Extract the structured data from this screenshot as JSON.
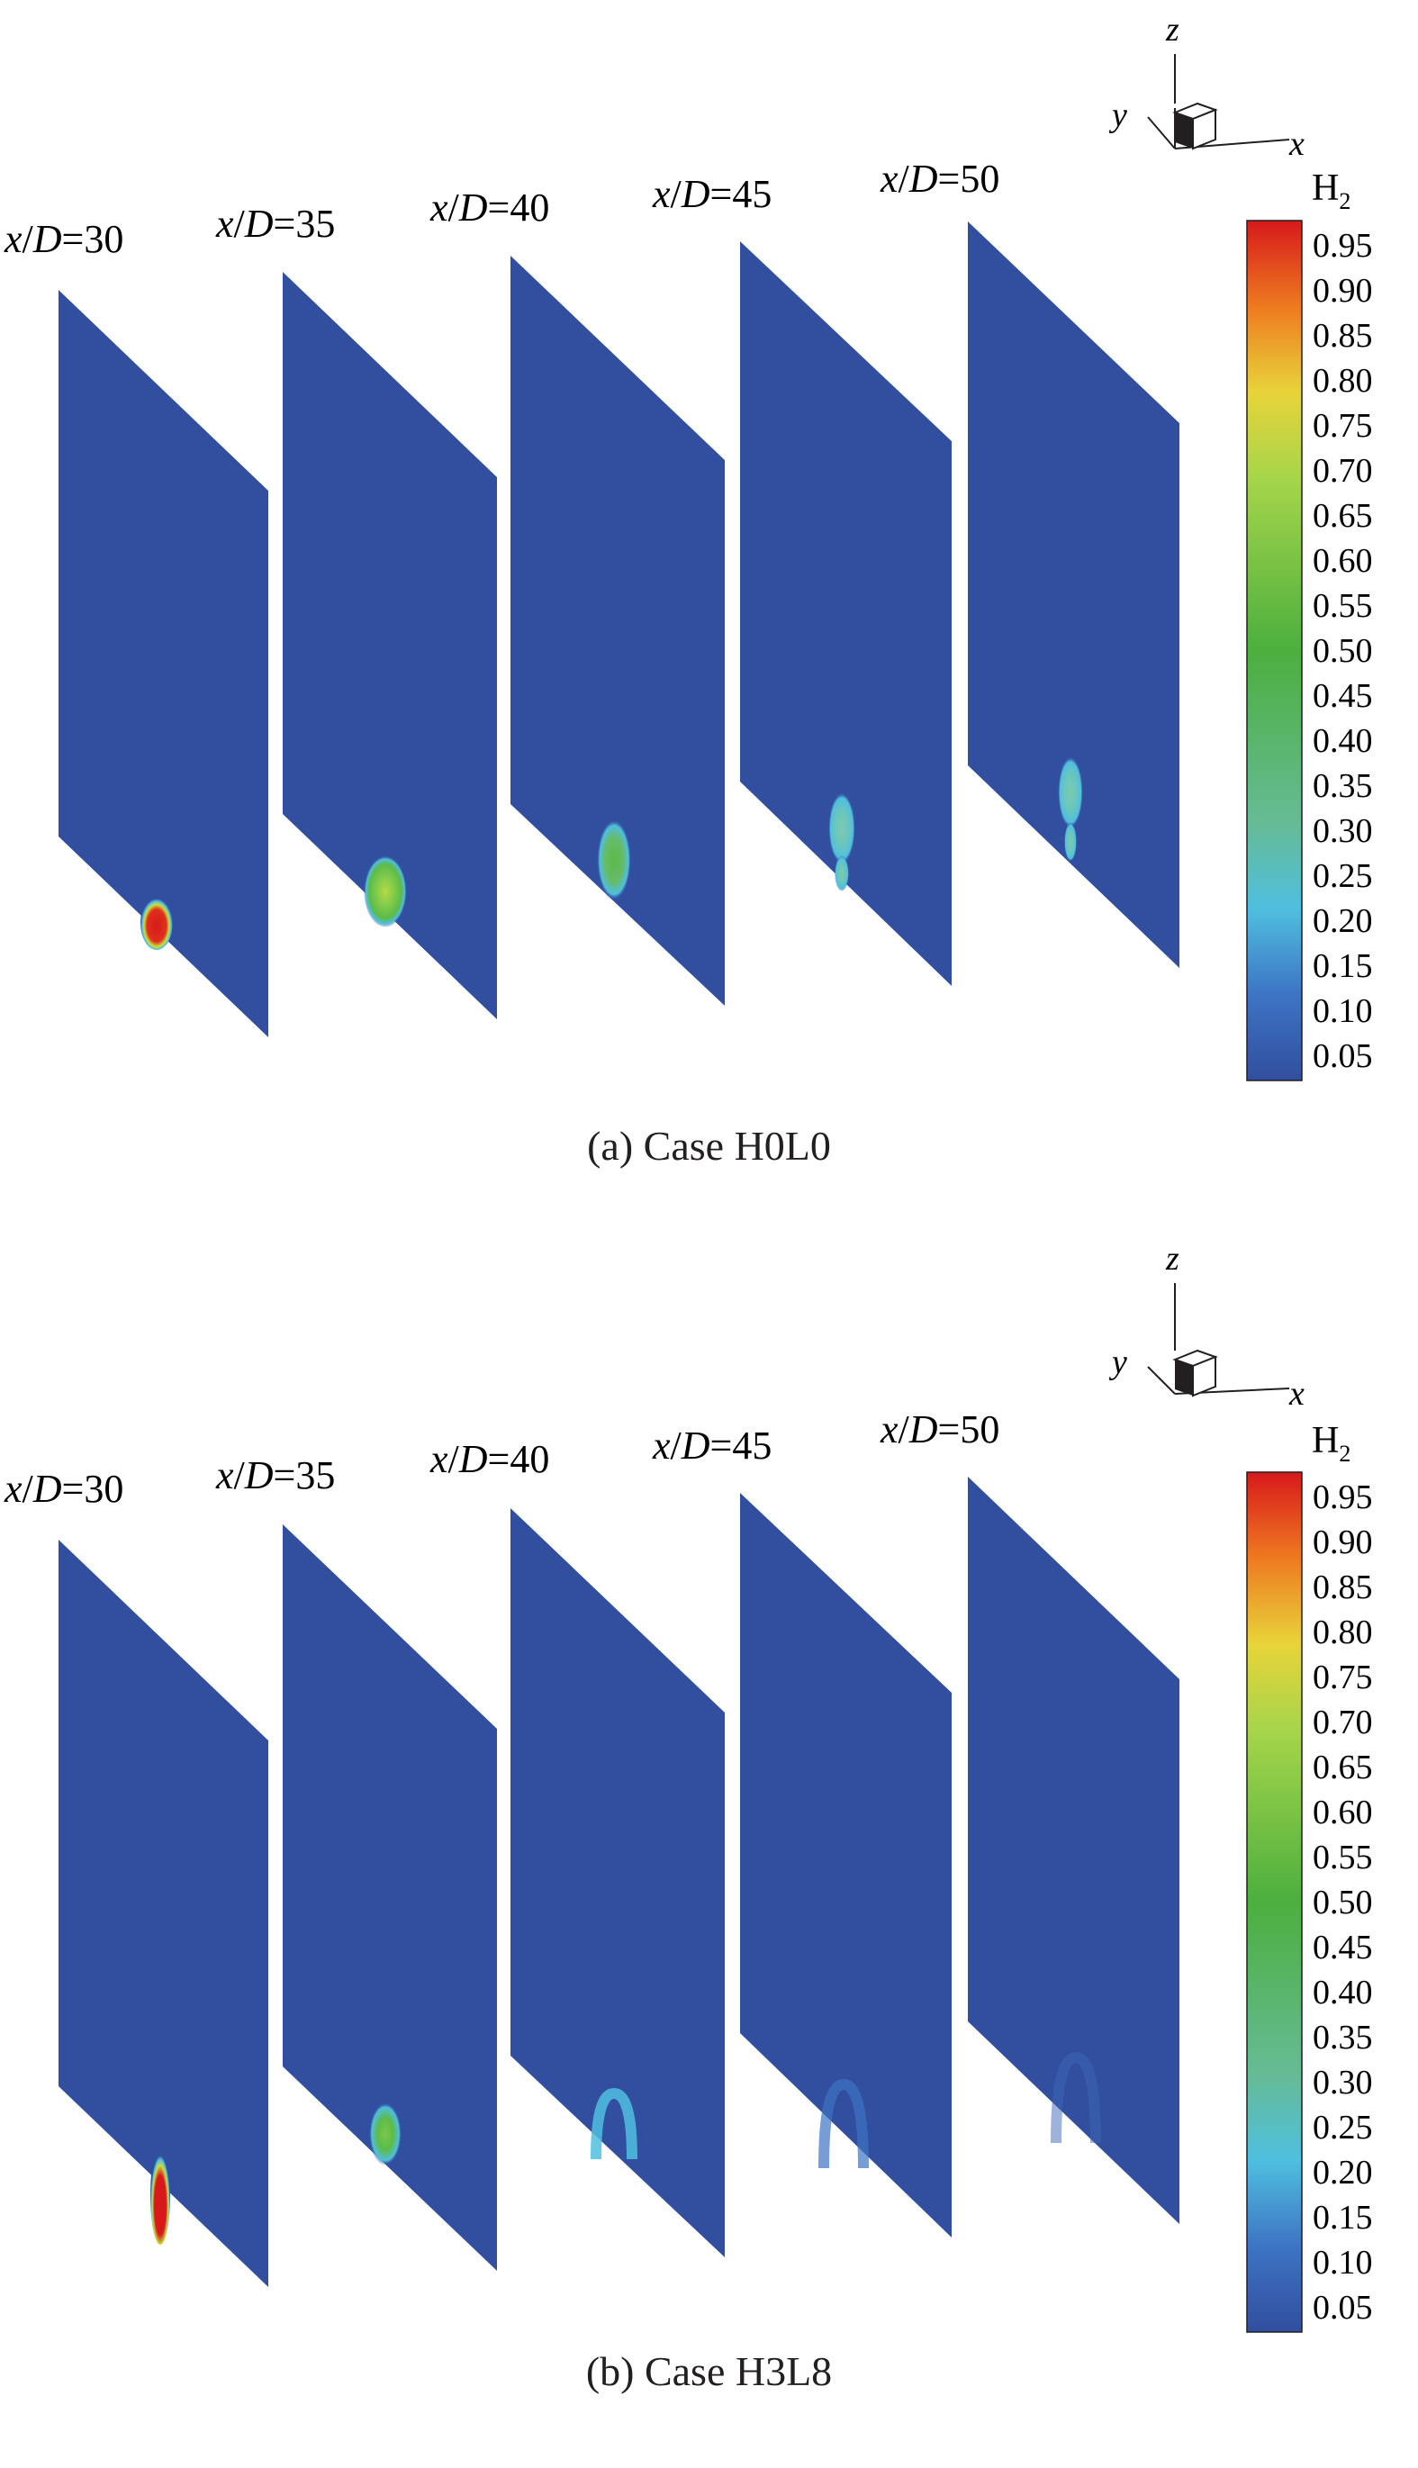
{
  "axis_labels": [
    "z",
    "y",
    "x"
  ],
  "colorbar": {
    "title_main": "H",
    "title_sub": "2",
    "ticks": [
      "0.95",
      "0.90",
      "0.85",
      "0.80",
      "0.75",
      "0.70",
      "0.65",
      "0.60",
      "0.55",
      "0.50",
      "0.45",
      "0.40",
      "0.35",
      "0.30",
      "0.25",
      "0.20",
      "0.15",
      "0.10",
      "0.05"
    ],
    "colors": [
      "#d7191c",
      "#e34a1d",
      "#ee7a20",
      "#f7a823",
      "#e8d43a",
      "#c9e03d",
      "#a6d54a",
      "#7cc94c",
      "#5cbb48",
      "#4caf3e",
      "#48a850",
      "#57b06d",
      "#66bb95",
      "#6ac6bd",
      "#4fbfdf",
      "#3c9fe0",
      "#3d74c4",
      "#34509f"
    ]
  },
  "slice_labels": {
    "var": "x",
    "den": "D",
    "values": [
      "=30",
      "=35",
      "=40",
      "=45",
      "=50"
    ]
  },
  "panels": [
    {
      "id": "a",
      "caption": "(a) Case H0L0"
    },
    {
      "id": "b",
      "caption": "(b) Case H3L8"
    }
  ],
  "background_color": "#324e9e"
}
